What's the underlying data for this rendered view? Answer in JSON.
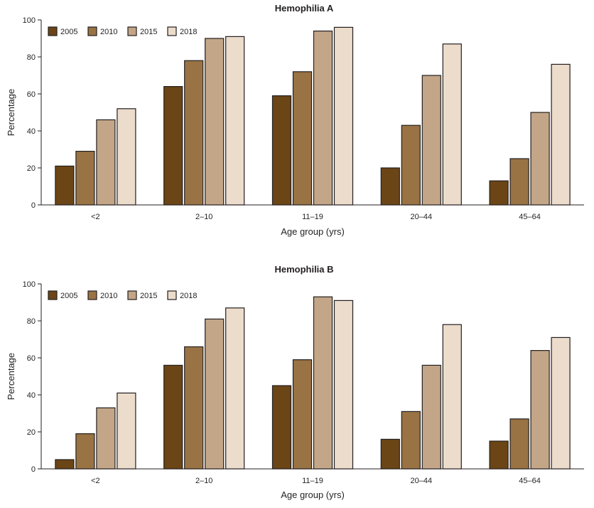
{
  "chart_data": [
    {
      "type": "bar",
      "title": "Hemophilia A",
      "xlabel": "Age group (yrs)",
      "ylabel": "Percentage",
      "ylim": [
        0,
        100
      ],
      "yticks": [
        "0",
        "20",
        "40",
        "60",
        "80",
        "100"
      ],
      "categories": [
        "<2",
        "2–10",
        "11–19",
        "20–44",
        "45–64"
      ],
      "legend_position": "top-left",
      "series": [
        {
          "name": "2005",
          "color": "#6b4516",
          "values": [
            21,
            64,
            59,
            20,
            13
          ]
        },
        {
          "name": "2010",
          "color": "#9a7344",
          "values": [
            29,
            78,
            72,
            43,
            25
          ]
        },
        {
          "name": "2015",
          "color": "#c3a688",
          "values": [
            46,
            90,
            94,
            70,
            50
          ]
        },
        {
          "name": "2018",
          "color": "#ecdccb",
          "values": [
            52,
            91,
            96,
            87,
            76
          ]
        }
      ]
    },
    {
      "type": "bar",
      "title": "Hemophilia B",
      "xlabel": "Age group (yrs)",
      "ylabel": "Percentage",
      "ylim": [
        0,
        100
      ],
      "yticks": [
        "0",
        "20",
        "40",
        "60",
        "80",
        "100"
      ],
      "categories": [
        "<2",
        "2–10",
        "11–19",
        "20–44",
        "45–64"
      ],
      "legend_position": "top-left",
      "series": [
        {
          "name": "2005",
          "color": "#6b4516",
          "values": [
            5,
            56,
            45,
            16,
            15
          ]
        },
        {
          "name": "2010",
          "color": "#9a7344",
          "values": [
            19,
            66,
            59,
            31,
            27
          ]
        },
        {
          "name": "2015",
          "color": "#c3a688",
          "values": [
            33,
            81,
            93,
            56,
            64
          ]
        },
        {
          "name": "2018",
          "color": "#ecdccb",
          "values": [
            41,
            87,
            91,
            78,
            71
          ]
        }
      ]
    }
  ]
}
